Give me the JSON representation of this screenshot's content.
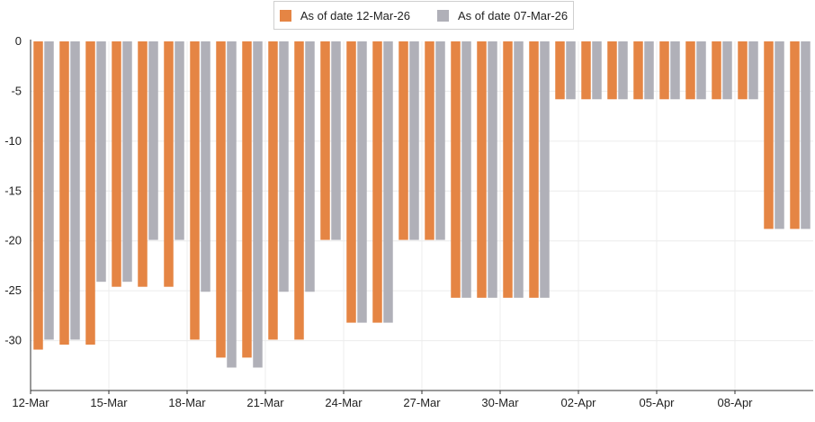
{
  "chart_data": {
    "type": "bar",
    "title": "",
    "xlabel": "",
    "ylabel": "",
    "ylim": [
      -35,
      0
    ],
    "yticks": [
      0,
      -5,
      -10,
      -15,
      -20,
      -25,
      -30
    ],
    "grid": true,
    "legend_position": "top-center",
    "categories": [
      "12-Mar",
      "13-Mar",
      "14-Mar",
      "15-Mar",
      "16-Mar",
      "17-Mar",
      "18-Mar",
      "19-Mar",
      "20-Mar",
      "21-Mar",
      "22-Mar",
      "23-Mar",
      "24-Mar",
      "25-Mar",
      "26-Mar",
      "27-Mar",
      "28-Mar",
      "29-Mar",
      "30-Mar",
      "31-Mar",
      "01-Apr",
      "02-Apr",
      "03-Apr",
      "04-Apr",
      "05-Apr",
      "06-Apr",
      "07-Apr",
      "08-Apr",
      "09-Apr",
      "10-Apr"
    ],
    "xtick_labels": [
      "12-Mar",
      "15-Mar",
      "18-Mar",
      "21-Mar",
      "24-Mar",
      "27-Mar",
      "30-Mar",
      "02-Apr",
      "05-Apr",
      "08-Apr"
    ],
    "series": [
      {
        "name": "As of date 12-Mar-26",
        "color": "#e58544",
        "values": [
          -30.9,
          -30.4,
          -30.4,
          -24.6,
          -24.6,
          -24.6,
          -29.9,
          -31.7,
          -31.7,
          -29.9,
          -29.9,
          -19.9,
          -28.2,
          -28.2,
          -19.9,
          -19.9,
          -25.7,
          -25.7,
          -25.7,
          -25.7,
          -5.8,
          -5.8,
          -5.8,
          -5.8,
          -5.8,
          -5.8,
          -5.8,
          -5.8,
          -18.8,
          -18.8
        ]
      },
      {
        "name": "As of date 07-Mar-26",
        "color": "#b0b0b8",
        "values": [
          -29.9,
          -29.9,
          -24.1,
          -24.1,
          -19.9,
          -19.9,
          -25.1,
          -32.7,
          -32.7,
          -25.1,
          -25.1,
          -19.9,
          -28.2,
          -28.2,
          -19.9,
          -19.9,
          -25.7,
          -25.7,
          -25.7,
          -25.7,
          -5.8,
          -5.8,
          -5.8,
          -5.8,
          -5.8,
          -5.8,
          -5.8,
          -5.8,
          -18.8,
          -18.8
        ]
      }
    ]
  }
}
